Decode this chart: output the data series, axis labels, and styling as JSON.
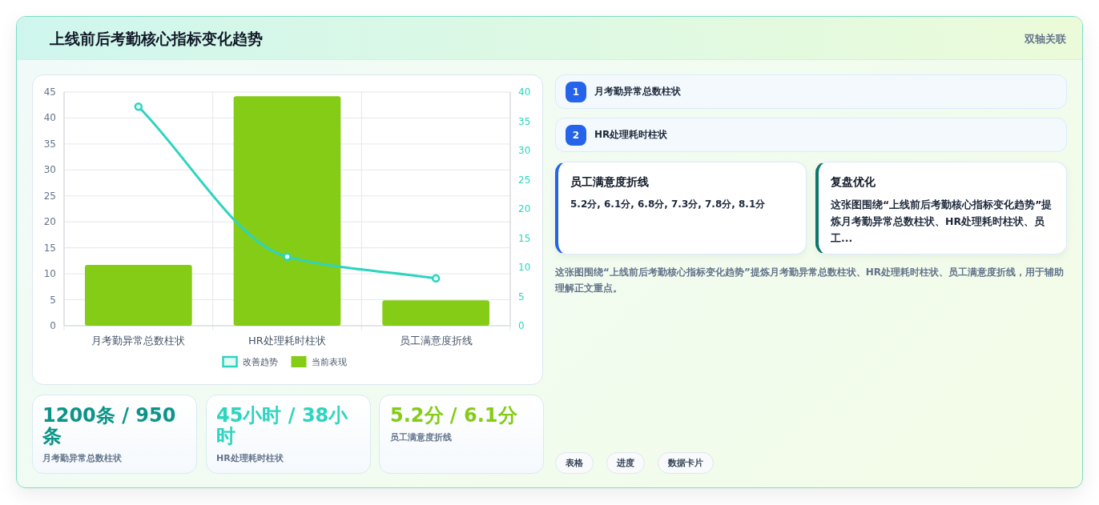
{
  "chart_data": [
    {
      "type": "bar",
      "title": "上线前后考勤核心指标变化趋势",
      "categories": [
        "月考勤异常总数柱状",
        "HR处理耗时柱状",
        "员工满意度折线"
      ],
      "series": [
        {
          "name": "改善趋势",
          "type": "line",
          "axis": "y2",
          "color": "#2dd4bf",
          "values": [
            37.5,
            11.8,
            8.1
          ]
        },
        {
          "name": "当前表现",
          "type": "bar",
          "color": "#84cc16",
          "values": [
            11.7,
            44.2,
            4.9
          ]
        }
      ],
      "ylim": [
        0,
        45
      ],
      "yticks": [
        0,
        5,
        10,
        15,
        20,
        25,
        30,
        35,
        40,
        45
      ],
      "y2lim": [
        0,
        40
      ],
      "y2ticks": [
        0,
        5,
        10,
        15,
        20,
        25,
        30,
        35,
        40
      ],
      "grid": true,
      "legend": "bottom",
      "marker": "circle"
    },
    {
      "type": "other",
      "annotations": [
        "1",
        "月考勤异常总数柱状",
        "2",
        "HR处理耗时柱状",
        "员工满意度折线",
        "5.2分, 6.1分, 6.8分, 7.3分, 7.8分, 8.1分",
        "复盘优化",
        "这张图围绕“上线前后考勤核心指标变化趋势”提炼月考勤异常总数柱状、HR处理耗时柱状、员工...",
        "这张图围绕“上线前后考勤核心指标变化趋势”提炼月考勤异常总数柱状、HR处理耗时柱状、员工满意度折线，用于辅助理解正文重点。",
        "1200条 / 950条",
        "月考勤异常总数柱状",
        "45小时 / 38小时",
        "HR处理耗时柱状",
        "5.2分 / 6.1分",
        "员工满意度折线",
        "表格",
        "进度",
        "数据卡片",
        "双轴关联"
      ]
    }
  ]
}
